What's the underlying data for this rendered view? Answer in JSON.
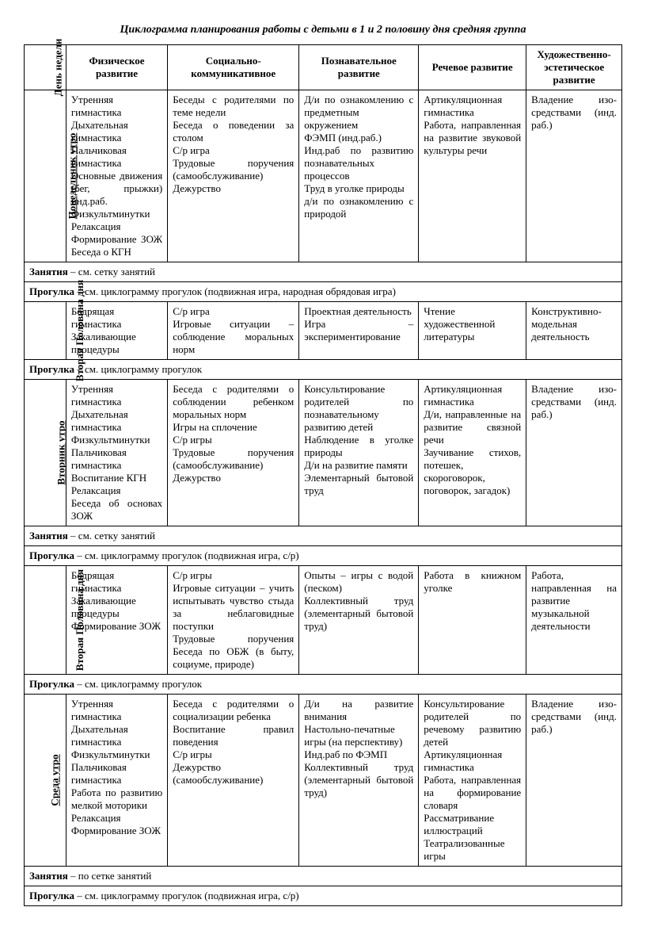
{
  "title": "Циклограмма планирования работы с детьми в 1 и 2 половину дня  средняя  группа",
  "headers": {
    "c0": "День недели",
    "c1": "Физическое развитие",
    "c2": "Социально-коммуникативное",
    "c3": "Познавательное развитие",
    "c4": "Речевое развитие",
    "c5": "Художественно-эстетическое развитие"
  },
  "rows": {
    "mon_morning": {
      "label": "Понедельник утро",
      "c1": "Утренняя гимнастика\nДыхательная гимнастика\nПальчиковая гимнастика\nОсновные движения (бег, прыжки) инд.раб.\nФизкультминутки\nРелаксация\nФормирование ЗОЖ Беседа о КГН",
      "c2": "Беседы с родителями по теме недели\nБеседа о поведении за столом\nС/р игра\nТрудовые поручения (самообслуживание)\nДежурство",
      "c3": "Д/и по ознакомлению с предметным окружением\nФЭМП (инд.раб.)\nИнд.раб по развитию познавательных процессов\nТруд в уголке природы\nд/и по ознакомлению с природой",
      "c4": "Артикуляционная гимнастика\nРабота, направленная на развитие звуковой культуры речи",
      "c5": "Владение изо-средствами (инд. раб.)"
    },
    "span1": "Занятия – см. сетку занятий",
    "span2": "Прогулка – см. циклограмму прогулок (подвижная игра, народная обрядовая игра)",
    "mon_half2": {
      "label": "Вторая Половина дня",
      "c1": "Бодрящая гимнастика\nЗакаливающие процедуры",
      "c2": "С/р игра\nИгровые ситуации – соблюдение моральных норм",
      "c3": "Проектная деятельность\nИгра – экспериментирование",
      "c4": "Чтение художественной литературы",
      "c5": "Конструктивно-модельная деятельность"
    },
    "span3": "Прогулка – см. циклограмму прогулок",
    "tue_morning": {
      "label": "Вторник утро",
      "c1": "Утренняя гимнастика\nДыхательная гимнастика\nФизкультминутки\nПальчиковая гимнастика\nВоспитание КГН\nРелаксация\nБеседа об основах ЗОЖ",
      "c2": "Беседа с родителями о соблюдении ребенком моральных норм\nИгры на сплочение\nС/р игры\nТрудовые поручения (самообслуживание)\nДежурство",
      "c3": "Консультирование родителей по познавательному развитию детей\nНаблюдение в уголке природы\nД/и на развитие памяти\nЭлементарный бытовой труд",
      "c4": "Артикуляционная гимнастика\nД/и, направленные на развитие связной речи\nЗаучивание стихов, потешек, скороговорок, поговорок, загадок)",
      "c5": "Владение изо-средствами (инд. раб.)"
    },
    "span4": "Занятия – см. сетку занятий",
    "span5": "Прогулка – см. циклограмму прогулок (подвижная игра, с/р)",
    "tue_half2": {
      "label": "Вторая Половина дня",
      "c1": "Бодрящая гимнастика\nЗакаливающие процедуры\nФормирование ЗОЖ",
      "c2": "С/р игры\nИгровые ситуации – учить испытывать чувство стыда за неблаговидные поступки\nТрудовые поручения Беседа по ОБЖ (в быту, социуме, природе)",
      "c3": "Опыты – игры с водой (песком)\nКоллективный труд (элементарный бытовой труд)",
      "c4": "Работа в книжном уголке",
      "c5": "Работа, направленная на развитие музыкальной деятельности"
    },
    "span6": "Прогулка – см. циклограмму прогулок",
    "wed_morning": {
      "label": "Среда утро",
      "c1": "Утренняя гимнастика\nДыхательная гимнастика\nФизкультминутки\nПальчиковая гимнастика\nРабота по развитию мелкой моторики\nРелаксация\nФормирование ЗОЖ",
      "c2": "Беседа с родителями о социализации ребенка\nВоспитание правил поведения\nС/р игры\nДежурство (самообслуживание)",
      "c3": "Д/и на развитие внимания\nНастольно-печатные игры (на перспективу)\nИнд.раб по ФЭМП\nКоллективный труд (элементарный бытовой труд)",
      "c4": "Консультирование родителей по речевому развитию детей\nАртикуляционная гимнастика\nРабота, направленная на формирование словаря\nРассматривание иллюстраций\nТеатрализованные игры",
      "c5": "Владение изо-средствами (инд. раб.)"
    },
    "span7": "Занятия – по сетке занятий",
    "span8": "Прогулка – см. циклограмму прогулок (подвижная игра, с/р)"
  }
}
